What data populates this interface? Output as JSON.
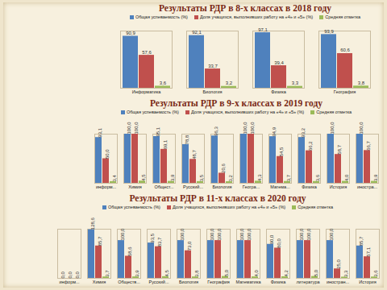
{
  "chart_data": [
    {
      "type": "bar",
      "title": "Результаты РДР в 8-х классах в 2018 году",
      "categories": [
        "Информатика",
        "Биология",
        "Физика",
        "География"
      ],
      "series": [
        {
          "name": "Общая успеваемость (%)",
          "color": "#4f81bd",
          "values": [
            90.9,
            92.1,
            97.1,
            93.9
          ],
          "value_labels": [
            "90,9",
            "92,1",
            "97,1",
            "93,9"
          ]
        },
        {
          "name": "Доля учащихся, выполнивших работу на «4» и «5» (%)",
          "color": "#c0504d",
          "values": [
            57.6,
            33.7,
            39.4,
            60.6
          ],
          "value_labels": [
            "57,6",
            "33,7",
            "39,4",
            "60,6"
          ]
        },
        {
          "name": "Средняя отметка",
          "color": "#9bbb59",
          "values": [
            3.6,
            3.2,
            3.3,
            3.8
          ],
          "value_labels": [
            "3,6",
            "3,2",
            "3,3",
            "3,8"
          ]
        }
      ],
      "ylim": [
        0,
        100
      ],
      "yticks": [],
      "legend": "top",
      "data_labels": true,
      "tick_labels": "x"
    },
    {
      "type": "bar",
      "title": "Результаты РДР в 9-х классах в 2019 году",
      "categories": [
        "информ...",
        "Химия",
        "Общест...",
        "Русский...",
        "Биология",
        "Геогра...",
        "Матема...",
        "Физика",
        "История",
        "иностра..."
      ],
      "series": [
        {
          "name": "Общая успеваемость (%)",
          "color": "#4f81bd",
          "values": [
            93.1,
            100.0,
            95.1,
            78.8,
            96.3,
            100.0,
            94.9,
            93.2,
            100.0,
            100.0
          ],
          "value_labels": [
            "93,1",
            "100,0",
            "95,1",
            "78,8",
            "96,3",
            "100,0",
            "94,9",
            "93,2",
            "100,0",
            "100,0"
          ]
        },
        {
          "name": "Доля учащихся, выполнивших работу на «4» и «5» (%)",
          "color": "#c0504d",
          "values": [
            50.0,
            100.0,
            69.1,
            48.7,
            20.6,
            100.0,
            54.5,
            66.2,
            58.7,
            66.7
          ],
          "value_labels": [
            "50,0",
            "100,0",
            "69,1",
            "48,7",
            "20,6",
            "100,0",
            "54,5",
            "66,2",
            "58,7",
            "66,7"
          ]
        },
        {
          "name": "Средняя отметка",
          "color": "#9bbb59",
          "values": [
            3.4,
            4.5,
            3.9,
            3.5,
            3.2,
            4.3,
            3.7,
            3.6,
            4.0,
            3.9
          ],
          "value_labels": [
            "3,4",
            "4,5",
            "3,9",
            "3,5",
            "3,2",
            "4,3",
            "3,7",
            "3,6",
            "4,0",
            "3,9"
          ]
        }
      ],
      "ylim": [
        0,
        100
      ],
      "yticks": [],
      "legend": "top",
      "data_labels": true,
      "tick_labels": "x"
    },
    {
      "type": "bar",
      "title": "Результаты РДР в 11-х классах в 2020 году",
      "categories": [
        "информ...",
        "Химия",
        "Обществ...",
        "Русский...",
        "Биология",
        "География",
        "Математика",
        "Физика",
        "литература",
        "иностран...",
        "История"
      ],
      "series": [
        {
          "name": "Общая успеваемость (%)",
          "color": "#4f81bd",
          "values": [
            0.0,
            128.6,
            100.0,
            93.5,
            100.0,
            100.0,
            100.0,
            90.0,
            100.0,
            100.0,
            85.7
          ],
          "value_labels": [
            "0,0",
            "128,6",
            "100,0",
            "93,5",
            "100,0",
            "100,0",
            "100,0",
            "90,0",
            "100,0",
            "100,0",
            "85,7"
          ]
        },
        {
          "name": "Доля учащихся, выполнивших работу на «4» и «5» (%)",
          "color": "#c0504d",
          "values": [
            0.0,
            85.7,
            58.6,
            83.7,
            73.0,
            100.0,
            100.0,
            80.0,
            100.0,
            25.0,
            57.1
          ],
          "value_labels": [
            "0,0",
            "85,7",
            "58,6",
            "83,7",
            "73,0",
            "100,0",
            "100,0",
            "80,0",
            "100,0",
            "25,0",
            "57,1"
          ]
        },
        {
          "name": "Средняя отметка",
          "color": "#9bbb59",
          "values": [
            0.0,
            3.7,
            3.9,
            4.5,
            3.8,
            5.0,
            4.0,
            4.2,
            5.0,
            3.3,
            3.6
          ],
          "value_labels": [
            "0,0",
            "3,7",
            "3,9",
            "4,5",
            "3,8",
            "5,0",
            "4,0",
            "4,2",
            "5,0",
            "3,3",
            "3,6"
          ]
        }
      ],
      "ylim": [
        0,
        130
      ],
      "yticks": [],
      "legend": "top",
      "data_labels": true,
      "tick_labels": "x"
    }
  ]
}
